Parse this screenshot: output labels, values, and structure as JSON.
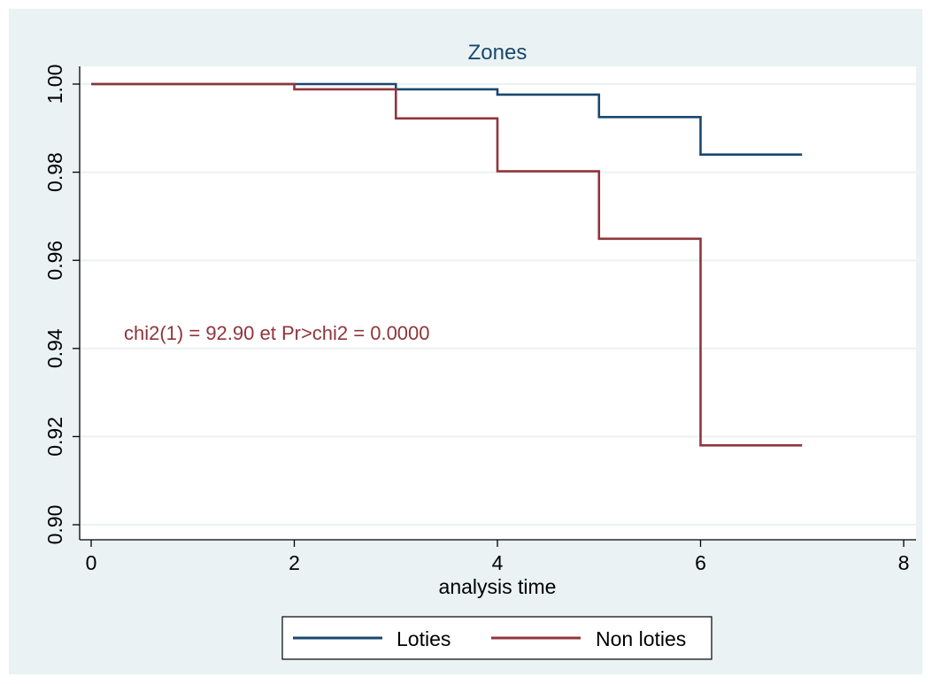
{
  "chart_data": {
    "type": "line",
    "title": "Zones",
    "xlabel": "analysis time",
    "ylabel": "",
    "xlim": [
      0,
      8
    ],
    "ylim": [
      0.9,
      1.0
    ],
    "x_ticks": [
      0,
      2,
      4,
      6,
      8
    ],
    "y_ticks": [
      0.9,
      0.92,
      0.94,
      0.96,
      0.98,
      1.0
    ],
    "x_tick_labels": [
      "0",
      "2",
      "4",
      "6",
      "8"
    ],
    "y_tick_labels": [
      "0.90",
      "0.92",
      "0.94",
      "0.96",
      "0.98",
      "1.00"
    ],
    "grid": true,
    "step": true,
    "legend_position": "bottom",
    "annotation": "chi2(1) = 92.90 et Pr>chi2 = 0.0000",
    "series": [
      {
        "name": "Loties",
        "color": "#1a476f",
        "x": [
          0,
          3,
          4,
          5,
          6,
          7
        ],
        "y": [
          1.0,
          0.9988,
          0.9976,
          0.9925,
          0.984,
          0.984
        ]
      },
      {
        "name": "Non loties",
        "color": "#90353b",
        "x": [
          0,
          2,
          3,
          4,
          5,
          6,
          7
        ],
        "y": [
          1.0,
          0.9988,
          0.9922,
          0.9802,
          0.9649,
          0.918,
          0.918
        ]
      }
    ],
    "colors": {
      "outer_background": "#eaf2f3",
      "plot_background": "#ffffff",
      "grid": "#eaf2f3",
      "title": "#1a476f",
      "annotation": "#90353b"
    }
  }
}
